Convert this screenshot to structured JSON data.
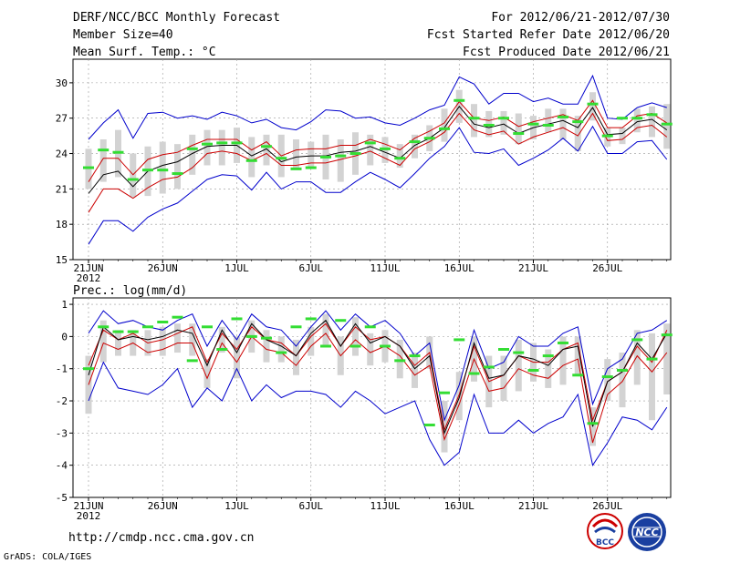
{
  "header": {
    "title": "DERF/NCC/BCC Monthly Forecast",
    "member_size": "Member Size=40",
    "variable": "Mean Surf. Temp.: °C",
    "period": "For 2012/06/21-2012/07/30",
    "started": "Fcst Started Refer Date 2012/06/20",
    "produced": "Fcst Produced Date 2012/06/21"
  },
  "footer": {
    "url": "http://cmdp.ncc.cma.gov.cn",
    "credit": "GrADS: COLA/IGES",
    "logo_bcc": "BCC",
    "logo_ncc": "NCC"
  },
  "colors": {
    "envelope": "#0000cc",
    "spread": "#cc0000",
    "mean": "#000000",
    "observed": "#33dd33",
    "box": "#d3d3d3",
    "grid": "#999999"
  },
  "chart_data": [
    {
      "type": "ensemble-line",
      "title": "Mean Surf. Temp.: °C",
      "xlabel": "",
      "ylabel": "",
      "xticks": [
        "21JUN",
        "26JUN",
        "1JUL",
        "6JUL",
        "11JUL",
        "16JUL",
        "21JUL",
        "26JUL"
      ],
      "xtick_day_index": [
        0,
        5,
        10,
        15,
        20,
        25,
        30,
        35
      ],
      "year_label": "2012",
      "ylim": [
        15,
        32
      ],
      "yticks": [
        15,
        18,
        21,
        24,
        27,
        30
      ],
      "days": 40,
      "series": [
        {
          "name": "max",
          "values": [
            16.3,
            18.3,
            18.3,
            17.4,
            18.6,
            19.3,
            19.8,
            20.8,
            21.8,
            22.2,
            22.1,
            20.9,
            22.4,
            21.0,
            21.6,
            21.6,
            20.7,
            20.7,
            21.6,
            22.4,
            21.8,
            21.1,
            22.3,
            23.6,
            24.6,
            26.2,
            24.1,
            24.0,
            24.4,
            23.0,
            23.6,
            24.3,
            25.3,
            24.2,
            26.3,
            24.0,
            24.0,
            25.0,
            25.1,
            23.5
          ]
        },
        {
          "name": "p75",
          "values": [
            19.0,
            21.0,
            21.0,
            20.2,
            21.1,
            21.8,
            22.0,
            22.8,
            24.0,
            24.2,
            24.0,
            23.4,
            24.0,
            23.0,
            23.0,
            23.2,
            23.2,
            23.5,
            23.8,
            24.2,
            23.6,
            23.0,
            24.4,
            25.0,
            25.8,
            27.4,
            26.0,
            25.6,
            25.9,
            24.8,
            25.4,
            25.8,
            26.2,
            25.5,
            27.4,
            25.1,
            25.2,
            26.2,
            26.4,
            25.4
          ]
        },
        {
          "name": "mean",
          "values": [
            20.6,
            22.2,
            22.5,
            21.2,
            22.5,
            23.0,
            23.3,
            24.0,
            24.6,
            24.7,
            24.7,
            23.8,
            24.4,
            23.3,
            23.7,
            23.8,
            23.8,
            24.1,
            24.2,
            24.6,
            24.1,
            23.6,
            24.7,
            25.3,
            26.2,
            28.0,
            26.5,
            26.2,
            26.5,
            25.7,
            26.2,
            26.5,
            26.8,
            26.2,
            27.9,
            25.6,
            25.7,
            26.7,
            26.9,
            26.0
          ]
        },
        {
          "name": "p25",
          "values": [
            21.6,
            23.6,
            23.6,
            22.2,
            23.5,
            23.9,
            24.1,
            24.7,
            25.2,
            25.2,
            25.2,
            24.3,
            25.0,
            23.8,
            24.3,
            24.4,
            24.4,
            24.7,
            24.7,
            25.2,
            24.8,
            24.3,
            25.3,
            25.9,
            26.6,
            28.4,
            27.0,
            26.8,
            27.1,
            26.3,
            26.7,
            27.0,
            27.3,
            26.8,
            28.5,
            26.2,
            26.2,
            27.2,
            27.4,
            26.6
          ]
        },
        {
          "name": "min",
          "values": [
            25.2,
            26.6,
            27.7,
            25.3,
            27.4,
            27.5,
            27.0,
            27.2,
            26.9,
            27.5,
            27.2,
            26.6,
            26.9,
            26.2,
            26.0,
            26.7,
            27.7,
            27.6,
            27.0,
            27.1,
            26.6,
            26.4,
            27.0,
            27.7,
            28.1,
            30.5,
            29.9,
            28.2,
            29.1,
            29.1,
            28.4,
            28.7,
            28.2,
            28.2,
            30.6,
            27.0,
            26.9,
            27.9,
            28.3,
            27.9
          ]
        }
      ],
      "boxes": {
        "low": [
          21.0,
          21.6,
          22.0,
          20.3,
          20.4,
          20.6,
          21.0,
          22.2,
          23.0,
          23.0,
          23.2,
          22.0,
          23.0,
          22.0,
          22.8,
          22.8,
          21.8,
          21.6,
          22.2,
          23.0,
          23.2,
          22.8,
          23.6,
          24.2,
          25.0,
          26.6,
          25.4,
          25.4,
          25.6,
          24.8,
          25.2,
          25.8,
          25.2,
          24.2,
          26.8,
          24.6,
          24.8,
          25.8,
          25.4,
          24.4
        ],
        "high": [
          24.4,
          25.2,
          26.0,
          24.0,
          24.6,
          25.0,
          24.8,
          25.6,
          26.0,
          26.0,
          26.2,
          25.4,
          25.6,
          25.6,
          25.2,
          25.0,
          25.6,
          25.2,
          25.8,
          25.6,
          25.4,
          24.8,
          25.6,
          26.4,
          27.8,
          29.4,
          28.2,
          27.6,
          27.6,
          27.4,
          27.2,
          27.8,
          27.8,
          27.2,
          29.2,
          26.2,
          26.2,
          27.8,
          28.0,
          28.2
        ]
      },
      "observed": [
        22.8,
        24.3,
        24.1,
        21.8,
        22.6,
        22.6,
        22.3,
        24.4,
        24.8,
        24.9,
        24.9,
        23.4,
        24.6,
        23.6,
        22.7,
        22.8,
        23.7,
        23.8,
        24.0,
        24.9,
        24.4,
        23.6,
        25.0,
        25.3,
        26.1,
        28.5,
        27.0,
        26.4,
        27.0,
        25.7,
        26.5,
        26.4,
        27.1,
        26.7,
        28.2,
        25.5,
        27.0,
        27.0,
        27.3,
        26.5
      ]
    },
    {
      "type": "ensemble-line",
      "title": "Prec.: log(mm/d)",
      "xlabel": "",
      "ylabel": "",
      "xticks": [
        "21JUN",
        "26JUN",
        "1JUL",
        "6JUL",
        "11JUL",
        "16JUL",
        "21JUL",
        "26JUL"
      ],
      "xtick_day_index": [
        0,
        5,
        10,
        15,
        20,
        25,
        30,
        35
      ],
      "year_label": "2012",
      "ylim": [
        -5,
        1.2
      ],
      "yticks": [
        -5,
        -4,
        -3,
        -2,
        -1,
        0,
        1
      ],
      "days": 40,
      "series": [
        {
          "name": "max",
          "values": [
            0.1,
            0.8,
            0.4,
            0.5,
            0.3,
            0.2,
            0.5,
            0.7,
            -0.3,
            0.5,
            -0.1,
            0.7,
            0.3,
            0.2,
            -0.3,
            0.3,
            0.8,
            0.2,
            0.7,
            0.3,
            0.5,
            0.1,
            -0.6,
            -0.2,
            -2.6,
            -1.5,
            0.2,
            -1.0,
            -0.8,
            0.0,
            -0.3,
            -0.3,
            0.1,
            0.3,
            -2.1,
            -1.0,
            -0.7,
            0.1,
            0.2,
            0.5
          ]
        },
        {
          "name": "p75",
          "values": [
            -0.9,
            0.2,
            -0.1,
            0.1,
            -0.2,
            -0.1,
            0.1,
            0.3,
            -0.8,
            0.1,
            -0.4,
            0.3,
            -0.1,
            -0.2,
            -0.6,
            0.0,
            0.4,
            -0.3,
            0.3,
            -0.1,
            0.0,
            -0.3,
            -0.9,
            -0.5,
            -2.9,
            -1.8,
            -0.3,
            -1.4,
            -1.2,
            -0.6,
            -0.8,
            -0.8,
            -0.4,
            -0.2,
            -2.6,
            -1.4,
            -1.1,
            -0.3,
            -0.8,
            0.2
          ]
        },
        {
          "name": "mean",
          "values": [
            -1.2,
            0.3,
            -0.1,
            0.0,
            -0.1,
            0.0,
            0.2,
            0.1,
            -0.9,
            0.2,
            -0.5,
            0.4,
            -0.1,
            -0.3,
            -0.6,
            0.1,
            0.5,
            -0.3,
            0.4,
            -0.2,
            0.0,
            -0.3,
            -1.0,
            -0.6,
            -3.0,
            -1.9,
            -0.2,
            -1.3,
            -1.2,
            -0.6,
            -0.7,
            -0.9,
            -0.4,
            -0.3,
            -2.8,
            -1.4,
            -1.1,
            -0.2,
            -0.7,
            0.1
          ]
        },
        {
          "name": "p25",
          "values": [
            -1.5,
            -0.2,
            -0.4,
            -0.2,
            -0.5,
            -0.4,
            -0.2,
            -0.2,
            -1.3,
            -0.2,
            -0.8,
            0.0,
            -0.4,
            -0.5,
            -0.9,
            -0.3,
            0.1,
            -0.6,
            -0.1,
            -0.5,
            -0.3,
            -0.6,
            -1.2,
            -0.9,
            -3.2,
            -2.1,
            -0.7,
            -1.7,
            -1.6,
            -1.0,
            -1.2,
            -1.3,
            -0.9,
            -0.7,
            -3.3,
            -1.8,
            -1.4,
            -0.6,
            -1.1,
            -0.5
          ]
        },
        {
          "name": "min",
          "values": [
            -2.0,
            -0.8,
            -1.6,
            -1.7,
            -1.8,
            -1.5,
            -1.0,
            -2.2,
            -1.6,
            -2.0,
            -1.0,
            -2.0,
            -1.5,
            -1.9,
            -1.7,
            -1.7,
            -1.8,
            -2.2,
            -1.7,
            -2.0,
            -2.4,
            -2.2,
            -2.0,
            -3.2,
            -4.0,
            -3.6,
            -1.8,
            -3.0,
            -3.0,
            -2.6,
            -3.0,
            -2.7,
            -2.5,
            -1.8,
            -4.0,
            -3.3,
            -2.5,
            -2.6,
            -2.9,
            -2.2
          ]
        }
      ],
      "boxes": {
        "low": [
          -2.4,
          -0.8,
          -0.6,
          -0.6,
          -0.6,
          -0.6,
          -0.5,
          -0.6,
          -1.6,
          -0.5,
          -1.3,
          -0.5,
          -0.8,
          -0.8,
          -1.2,
          -0.6,
          -0.3,
          -1.2,
          -0.6,
          -0.9,
          -0.8,
          -1.3,
          -1.6,
          -1.0,
          -3.6,
          -2.6,
          -1.4,
          -2.2,
          -2.0,
          -1.7,
          -1.4,
          -1.6,
          -1.5,
          -1.2,
          -3.4,
          -2.0,
          -2.2,
          -1.5,
          -2.6,
          -1.8
        ],
        "high": [
          -0.6,
          0.5,
          0.2,
          0.2,
          0.2,
          0.3,
          0.4,
          0.4,
          -0.7,
          0.3,
          0.0,
          0.5,
          0.2,
          0.0,
          -0.1,
          0.3,
          0.7,
          0.0,
          0.6,
          0.1,
          0.2,
          -0.1,
          -0.5,
          0.0,
          -2.0,
          -1.1,
          0.0,
          -0.6,
          -0.6,
          -0.1,
          -0.2,
          -0.4,
          0.0,
          0.0,
          -2.2,
          -0.7,
          -0.5,
          0.2,
          0.1,
          0.4
        ]
      },
      "observed": [
        -1.0,
        0.3,
        0.15,
        0.15,
        0.3,
        0.45,
        0.6,
        -0.75,
        0.3,
        -0.4,
        0.55,
        0.0,
        -0.05,
        -0.5,
        0.3,
        0.55,
        -0.3,
        0.5,
        -0.3,
        0.3,
        -0.3,
        -0.75,
        -0.6,
        -2.75,
        -1.75,
        -0.1,
        -1.15,
        -0.95,
        -0.4,
        -0.5,
        -1.05,
        -0.6,
        -0.2,
        -1.2,
        -2.7,
        -1.25,
        -1.05,
        -0.1,
        -0.7,
        0.05
      ]
    }
  ]
}
